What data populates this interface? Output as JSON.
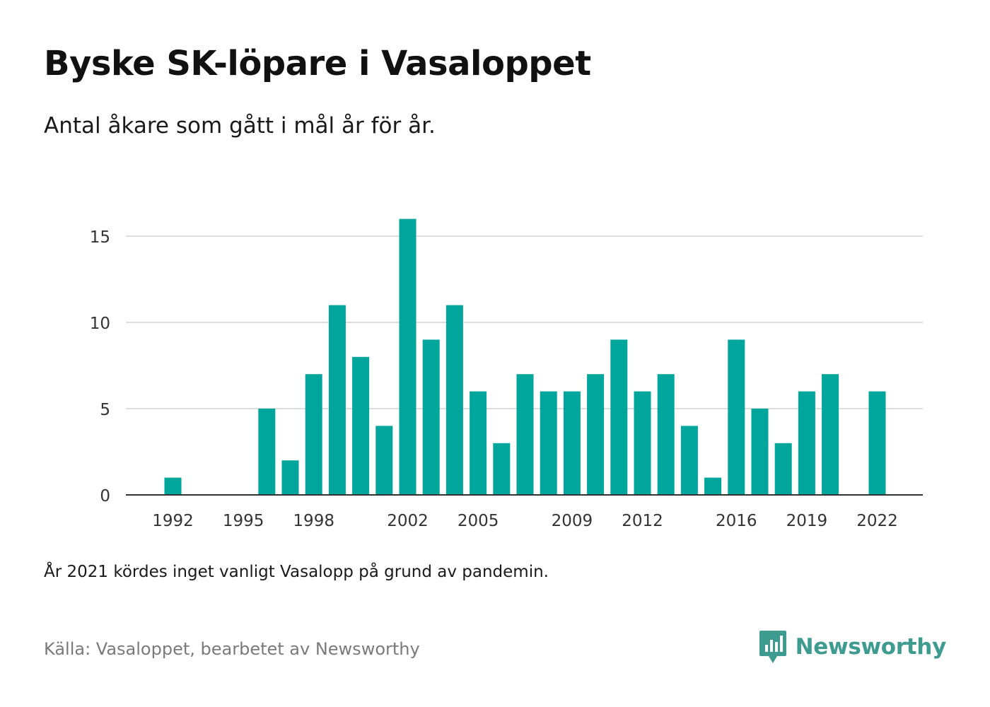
{
  "header": {
    "title": "Byske SK-löpare i Vasaloppet",
    "subtitle": "Antal åkare som gått i mål år för år."
  },
  "note": "År 2021 kördes inget vanligt Vasalopp på grund av pandemin.",
  "footer": {
    "source": "Källa: Vasaloppet, bearbetet av Newsworthy",
    "brand": "Newsworthy",
    "brand_icon": "bar-chart-speech-bubble-icon"
  },
  "colors": {
    "bar": "#00a59b",
    "grid": "#dddddd",
    "axis": "#333333",
    "brand": "#3d9b8f"
  },
  "chart_data": {
    "type": "bar",
    "categories": [
      "1992",
      "1993",
      "1994",
      "1995",
      "1996",
      "1997",
      "1998",
      "1999",
      "2000",
      "2001",
      "2002",
      "2003",
      "2004",
      "2005",
      "2006",
      "2007",
      "2008",
      "2009",
      "2010",
      "2011",
      "2012",
      "2013",
      "2014",
      "2015",
      "2016",
      "2017",
      "2018",
      "2019",
      "2020",
      "2021",
      "2022"
    ],
    "values": [
      1,
      0,
      0,
      0,
      5,
      2,
      7,
      11,
      8,
      4,
      16,
      9,
      11,
      6,
      3,
      7,
      6,
      6,
      7,
      9,
      6,
      7,
      4,
      1,
      9,
      5,
      3,
      6,
      7,
      null,
      6
    ],
    "x_tick_labels": [
      "1992",
      "1995",
      "1998",
      "2002",
      "2005",
      "2009",
      "2012",
      "2016",
      "2019",
      "2022"
    ],
    "y_ticks": [
      "0",
      "5",
      "10",
      "15"
    ],
    "ylim": [
      0,
      16
    ],
    "grid": true,
    "legend": "none"
  }
}
